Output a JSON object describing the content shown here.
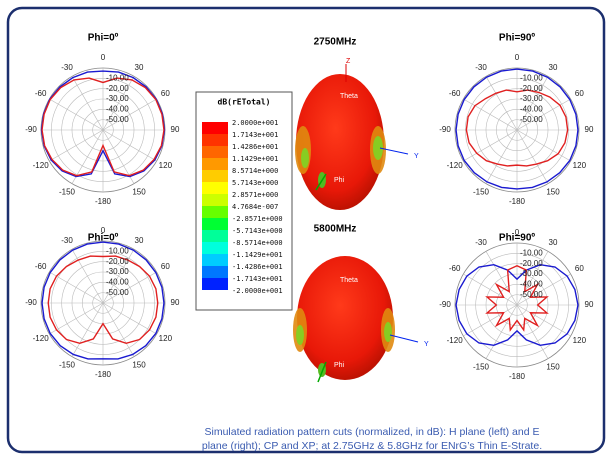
{
  "chart_data": [
    {
      "type": "polar",
      "title": "Phi=0º",
      "theta": [
        -180,
        -165,
        -150,
        -135,
        -120,
        -105,
        -90,
        -75,
        -60,
        -45,
        -30,
        -15,
        0,
        15,
        30,
        45,
        60,
        75,
        90,
        105,
        120,
        135,
        150,
        165
      ],
      "angle_ticks": [
        0,
        30,
        60,
        90,
        120,
        150,
        -180,
        -150,
        -120,
        -90,
        -60,
        -30
      ],
      "rlim": [
        -60,
        0
      ],
      "rticks": [
        {
          "value": -10,
          "label": "-10.00"
        },
        {
          "value": -20,
          "label": "-20.00"
        },
        {
          "value": -30,
          "label": "-30.00"
        },
        {
          "value": -40,
          "label": "-40.00"
        },
        {
          "value": -50,
          "label": "-50.00"
        }
      ],
      "series": [
        {
          "color": "#1a1ad0",
          "values": [
            -40,
            -16,
            -8,
            -4,
            -2,
            -1,
            -0.5,
            -0.5,
            -0.5,
            -1,
            -1.5,
            -2,
            -3,
            -2,
            -1.5,
            -1,
            -0.5,
            -0.5,
            -0.5,
            -1,
            -2,
            -4,
            -8,
            -16
          ]
        },
        {
          "color": "#e02020",
          "values": [
            -45,
            -18,
            -9,
            -5,
            -3,
            -1.5,
            -1,
            -1,
            -1,
            -2,
            -4,
            -8,
            -14,
            -8,
            -4,
            -2,
            -1,
            -1,
            -1,
            -1.5,
            -3,
            -5,
            -9,
            -18
          ]
        }
      ]
    },
    {
      "type": "polar",
      "title": "Phi=90º",
      "theta": [
        -180,
        -165,
        -150,
        -135,
        -120,
        -105,
        -90,
        -75,
        -60,
        -45,
        -30,
        -15,
        0,
        15,
        30,
        45,
        60,
        75,
        90,
        105,
        120,
        135,
        150,
        165
      ],
      "angle_ticks": [
        0,
        30,
        60,
        90,
        120,
        150,
        -180,
        -150,
        -120,
        -90,
        -60,
        -30
      ],
      "rlim": [
        -60,
        0
      ],
      "rticks": [
        {
          "value": -10,
          "label": "-10.00"
        },
        {
          "value": -20,
          "label": "-20.00"
        },
        {
          "value": -30,
          "label": "-30.00"
        },
        {
          "value": -40,
          "label": "-40.00"
        },
        {
          "value": -50,
          "label": "-50.00"
        }
      ],
      "series": [
        {
          "color": "#1a1ad0",
          "values": [
            -3,
            -2.5,
            -2,
            -1.5,
            -1,
            -1,
            -1,
            -1,
            -1,
            -1,
            -1,
            -1,
            -1,
            -1,
            -1,
            -1,
            -1,
            -1,
            -1,
            -1,
            -1,
            -1.5,
            -2,
            -2.5
          ]
        },
        {
          "color": "#e02020",
          "values": [
            -26,
            -24,
            -22,
            -18,
            -15,
            -12,
            -11,
            -11,
            -13,
            -17,
            -19,
            -20,
            -23,
            -20,
            -18,
            -15,
            -12,
            -11,
            -11,
            -12,
            -14,
            -18,
            -22,
            -24
          ]
        }
      ]
    },
    {
      "type": "polar",
      "title": "Phi=0º",
      "theta": [
        -180,
        -165,
        -150,
        -135,
        -120,
        -105,
        -90,
        -75,
        -60,
        -45,
        -30,
        -15,
        0,
        15,
        30,
        45,
        60,
        75,
        90,
        105,
        120,
        135,
        150,
        165
      ],
      "angle_ticks": [
        0,
        30,
        60,
        90,
        120,
        150,
        -180,
        -150,
        -120,
        -90,
        -60,
        -30
      ],
      "rlim": [
        -60,
        0
      ],
      "rticks": [
        {
          "value": -10,
          "label": "-10.00"
        },
        {
          "value": -20,
          "label": "-20.00"
        },
        {
          "value": -30,
          "label": "-30.00"
        },
        {
          "value": -40,
          "label": "-40.00"
        },
        {
          "value": -50,
          "label": "-50.00"
        }
      ],
      "series": [
        {
          "color": "#1a1ad0",
          "values": [
            -6,
            -4,
            -2.5,
            -1.5,
            -1,
            -1,
            -1,
            -1,
            -1,
            -1,
            -1,
            -1,
            -1,
            -1,
            -1,
            -1,
            -1,
            -1,
            -1,
            -1,
            -1,
            -1.5,
            -2.5,
            -4
          ]
        },
        {
          "color": "#e02020",
          "values": [
            -40,
            -24,
            -15,
            -10,
            -8,
            -7,
            -7,
            -7,
            -8,
            -10,
            -12,
            -13,
            -15,
            -13,
            -12,
            -10,
            -8,
            -7,
            -7,
            -7,
            -8,
            -10,
            -15,
            -24
          ]
        }
      ]
    },
    {
      "type": "polar",
      "title": "Phi=90º",
      "theta": [
        -180,
        -165,
        -150,
        -135,
        -120,
        -105,
        -90,
        -75,
        -60,
        -45,
        -30,
        -15,
        0,
        15,
        30,
        45,
        60,
        75,
        90,
        105,
        120,
        135,
        150,
        165
      ],
      "angle_ticks": [
        0,
        30,
        60,
        90,
        120,
        150,
        -180,
        -150,
        -120,
        -90,
        -60,
        -30
      ],
      "rlim": [
        -60,
        0
      ],
      "rticks": [
        {
          "value": -10,
          "label": "-10.00"
        },
        {
          "value": -20,
          "label": "-20.00"
        },
        {
          "value": -30,
          "label": "-30.00"
        },
        {
          "value": -40,
          "label": "-40.00"
        },
        {
          "value": -50,
          "label": "-50.00"
        }
      ],
      "series": [
        {
          "color": "#1a1ad0",
          "values": [
            -35,
            -25,
            -15,
            -8,
            -4,
            -2,
            -1,
            -2,
            -4,
            -8,
            -15,
            -25,
            -35,
            -25,
            -15,
            -8,
            -4,
            -2,
            -1,
            -2,
            -4,
            -8,
            -15,
            -25
          ]
        },
        {
          "color": "#e02020",
          "values": [
            -45,
            -35,
            -45,
            -32,
            -45,
            -30,
            -40,
            -30,
            -45,
            -32,
            -45,
            -25,
            -22,
            -25,
            -45,
            -32,
            -45,
            -30,
            -40,
            -30,
            -45,
            -32,
            -45,
            -35
          ]
        }
      ]
    }
  ],
  "figures": [
    {
      "title": "2750MHz",
      "labels": [
        "Z",
        "Theta",
        "Phi",
        "Y"
      ]
    },
    {
      "title": "5800MHz",
      "labels": [
        "Theta",
        "Phi",
        "Y"
      ]
    }
  ],
  "colorbar": {
    "title": "dB(rETotal)",
    "labels": [
      "2.0000e+001",
      "1.7143e+001",
      "1.4286e+001",
      "1.1429e+001",
      "8.5714e+000",
      "5.7143e+000",
      "2.8571e+000",
      "4.7684e-007",
      "-2.8571e+000",
      "-5.7143e+000",
      "-8.5714e+000",
      "-1.1429e+001",
      "-1.4286e+001",
      "-1.7143e+001",
      "-2.0000e+001"
    ],
    "colors": [
      "#ff0000",
      "#ff3300",
      "#ff6600",
      "#ff9900",
      "#ffcc00",
      "#ffff00",
      "#ccff00",
      "#66ff00",
      "#00ff33",
      "#00ff99",
      "#00ffdd",
      "#00ccff",
      "#0077ff",
      "#0022ff"
    ]
  },
  "caption": [
    "Simulated radiation pattern cuts (normalized, in dB): H plane (left) and  E",
    "plane (right); CP and XP; at 2.75GHz & 5.8GHz  for ENrG’s Thin E-Strate."
  ]
}
